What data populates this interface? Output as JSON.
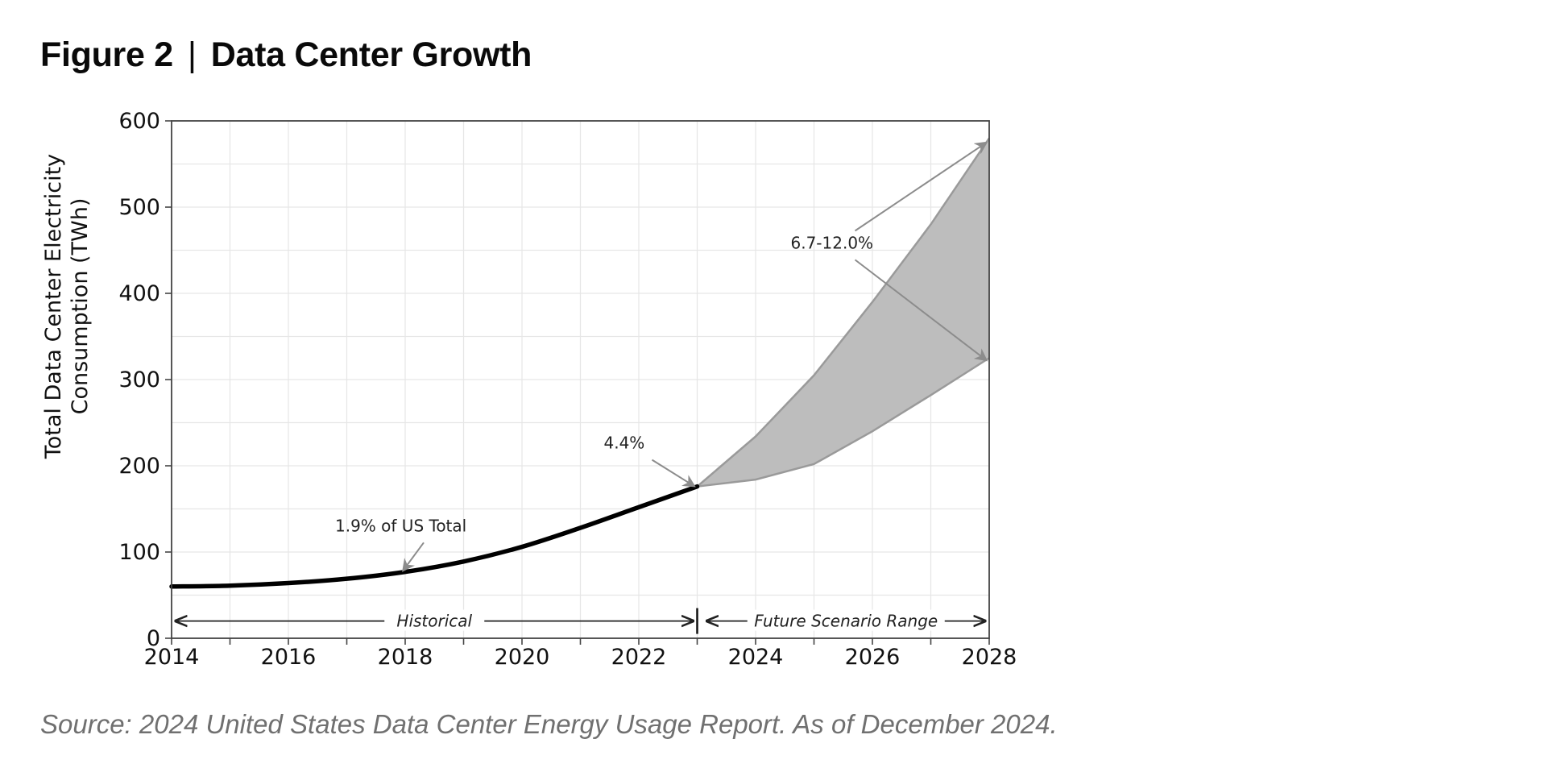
{
  "figure": {
    "label": "Figure 2",
    "separator": "|",
    "title": "Data Center Growth"
  },
  "source": "Source: 2024 United States Data Center Energy Usage Report. As of December 2024.",
  "colors": {
    "historical_line": "#000000",
    "scenario_fill": "#bdbdbd",
    "scenario_edge": "#9a9a9a",
    "grid": "#e6e6e6",
    "annotation_arrow": "#8c8c8c"
  },
  "chart_data": {
    "type": "area",
    "xlabel": "",
    "ylabel": "Total Data Center Electricity Consumption (TWh)",
    "ylabel_lines": [
      "Total Data Center Electricity",
      "Consumption (TWh)"
    ],
    "xlim": [
      2014,
      2028
    ],
    "ylim": [
      0,
      600
    ],
    "x_ticks": [
      2014,
      2016,
      2018,
      2020,
      2022,
      2024,
      2026,
      2028
    ],
    "y_ticks": [
      0,
      100,
      200,
      300,
      400,
      500,
      600
    ],
    "grid": true,
    "series": [
      {
        "kind": "line",
        "x": [
          2014,
          2015,
          2016,
          2017,
          2018,
          2019,
          2020,
          2021,
          2022,
          2023
        ],
        "values": [
          60,
          61,
          64,
          69,
          77,
          89,
          106,
          128,
          152,
          176
        ]
      },
      {
        "kind": "band",
        "x": [
          2023,
          2024,
          2025,
          2026,
          2027,
          2028
        ],
        "low": [
          176,
          184,
          202,
          240,
          282,
          325
        ],
        "high": [
          176,
          234,
          305,
          390,
          480,
          580
        ]
      }
    ],
    "annotations": [
      {
        "text": "1.9% of US Total",
        "x": 2016.8,
        "y": 124,
        "target": [
          2018,
          78
        ]
      },
      {
        "text": "4.4%",
        "x": 2021.4,
        "y": 220,
        "target": [
          2023,
          176
        ]
      },
      {
        "text": "6.7-12.0%",
        "x": 2024.6,
        "y": 452,
        "targets": [
          [
            2028,
            578
          ],
          [
            2028,
            322
          ]
        ]
      }
    ],
    "period_labels": [
      {
        "text": "Historical",
        "from": 2014,
        "to": 2023
      },
      {
        "text": "Future Scenario Range",
        "from": 2023,
        "to": 2028
      }
    ],
    "period_y": 20,
    "divider_x": 2023
  }
}
